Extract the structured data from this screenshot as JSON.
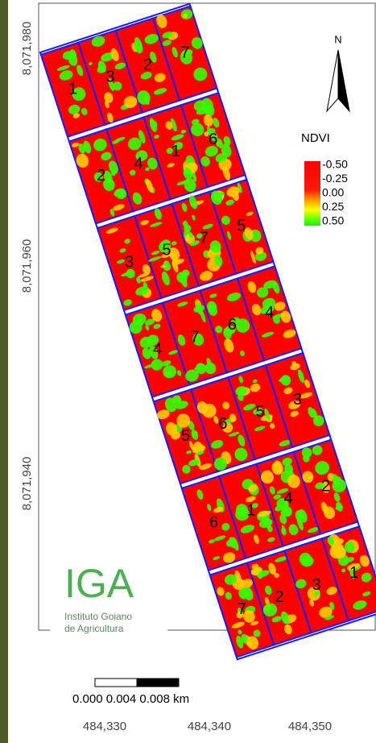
{
  "axes": {
    "y_labels": [
      "8,071,980",
      "8,071,960",
      "8,071,940"
    ],
    "x_labels": [
      "484,330",
      "484,340",
      "484,350"
    ]
  },
  "north": "N",
  "legend": {
    "title": "NDVI",
    "labels": [
      "-0.50",
      "-0.25",
      "0.00",
      "0.25",
      "0.50"
    ]
  },
  "plots": [
    [
      "1",
      "3",
      "2",
      "7"
    ],
    [
      "2",
      "4",
      "1",
      "6"
    ],
    [
      "3",
      "5",
      "7",
      "5"
    ],
    [
      "4",
      "7",
      "6",
      "4"
    ],
    [
      "5",
      "6",
      "5",
      "3"
    ],
    [
      "6",
      "1",
      "4",
      "2"
    ],
    [
      "7",
      "2",
      "3",
      "1"
    ]
  ],
  "logo": {
    "mark": "IGA",
    "line1": "Instituto Goiano",
    "line2": "de Agricultura"
  },
  "scale_bar": "0.000 0.004 0.008 km"
}
